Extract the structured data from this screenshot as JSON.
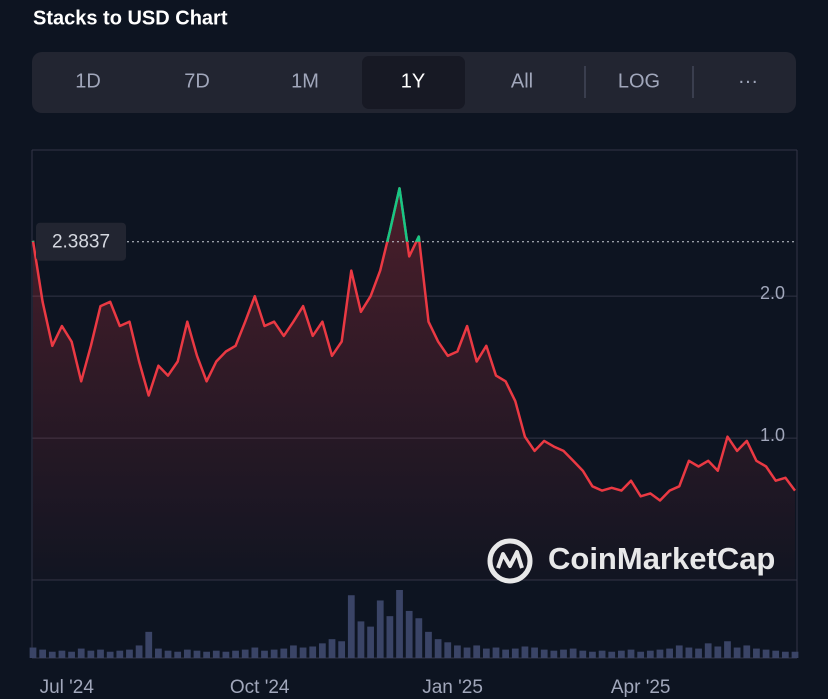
{
  "chart_data": {
    "type": "line",
    "title": "Stacks to USD Chart",
    "toolbar": {
      "buttons": [
        "1D",
        "7D",
        "1M",
        "1Y",
        "All",
        "LOG",
        "···"
      ],
      "selected": 3
    },
    "watermark": "CoinMarketCap",
    "reference_value": 2.3837,
    "xlim": [
      0,
      79
    ],
    "xticks": [
      {
        "value": 3.5,
        "label": "Jul '24"
      },
      {
        "value": 23.5,
        "label": "Oct '24"
      },
      {
        "value": 43.5,
        "label": "Jan '25"
      },
      {
        "value": 63,
        "label": "Apr '25"
      }
    ],
    "ylim": [
      0,
      3.03
    ],
    "yticks": [
      {
        "value": 1,
        "label": "1.0"
      },
      {
        "value": 2,
        "label": "2.0"
      }
    ],
    "grid": true,
    "color_above": "#16c784",
    "color_below": "#ea3943",
    "volume_color": "#3a4466",
    "series": [
      {
        "name": "Price",
        "values": [
          2.39,
          1.96,
          1.65,
          1.79,
          1.68,
          1.4,
          1.65,
          1.93,
          1.96,
          1.79,
          1.82,
          1.54,
          1.3,
          1.51,
          1.44,
          1.54,
          1.82,
          1.58,
          1.4,
          1.54,
          1.61,
          1.65,
          1.82,
          2.0,
          1.79,
          1.82,
          1.72,
          1.82,
          1.93,
          1.72,
          1.82,
          1.58,
          1.68,
          2.18,
          1.89,
          2.0,
          2.18,
          2.46,
          2.76,
          2.28,
          2.42,
          1.82,
          1.68,
          1.58,
          1.61,
          1.79,
          1.54,
          1.65,
          1.44,
          1.4,
          1.26,
          1.01,
          0.91,
          0.98,
          0.94,
          0.91,
          0.84,
          0.77,
          0.66,
          0.63,
          0.65,
          0.63,
          0.7,
          0.59,
          0.61,
          0.56,
          0.63,
          0.66,
          0.84,
          0.8,
          0.84,
          0.77,
          1.01,
          0.91,
          0.98,
          0.84,
          0.8,
          0.7,
          0.72,
          0.63
        ],
        "volume": [
          10,
          8,
          6,
          7,
          6,
          9,
          7,
          8,
          6,
          7,
          8,
          12,
          25,
          9,
          7,
          6,
          8,
          7,
          6,
          7,
          6,
          7,
          8,
          10,
          7,
          8,
          9,
          12,
          10,
          11,
          14,
          18,
          16,
          60,
          35,
          30,
          55,
          40,
          65,
          45,
          38,
          25,
          18,
          15,
          12,
          10,
          12,
          9,
          10,
          8,
          9,
          11,
          10,
          8,
          7,
          8,
          9,
          7,
          6,
          7,
          6,
          7,
          8,
          6,
          7,
          8,
          9,
          12,
          10,
          9,
          14,
          11,
          16,
          10,
          12,
          9,
          8,
          7,
          6,
          6
        ]
      }
    ]
  }
}
